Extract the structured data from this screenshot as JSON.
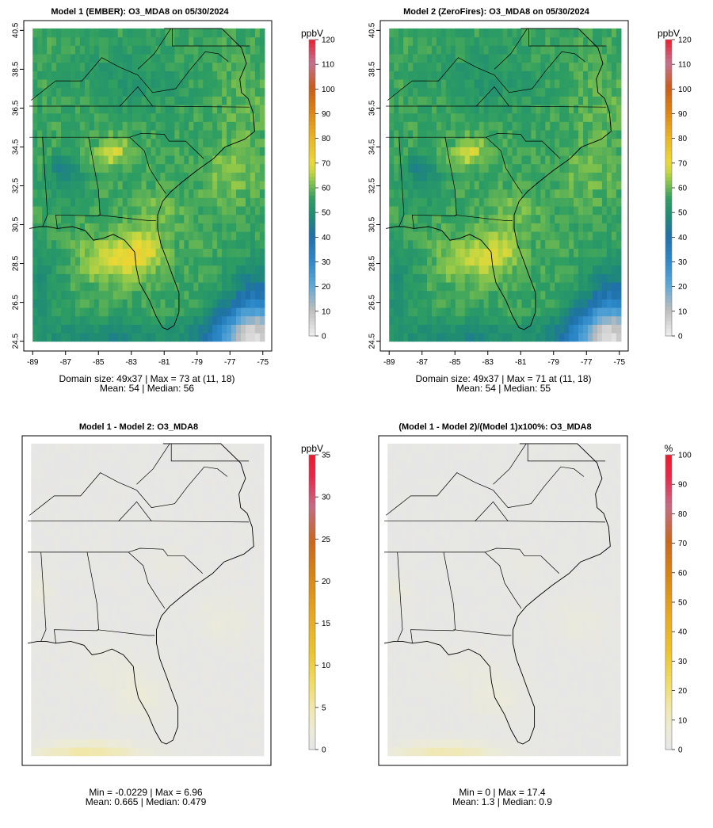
{
  "panels": [
    {
      "id": "model1",
      "title": "Model 1 (EMBER): O3_MDA8 on 05/30/2024",
      "unit": "ppbV",
      "legend_ticks": [
        "0",
        "10",
        "20",
        "30",
        "40",
        "50",
        "60",
        "70",
        "80",
        "90",
        "100",
        "110",
        "120"
      ],
      "legend_max": 120,
      "kind": "conc",
      "x_ticks": [
        "-89",
        "-87",
        "-85",
        "-83",
        "-81",
        "-79",
        "-77",
        "-75"
      ],
      "y_ticks": [
        "24.5",
        "26.5",
        "28.5",
        "30.5",
        "32.5",
        "34.5",
        "36.5",
        "38.5",
        "40.5"
      ],
      "stats_line1": "Domain size: 49x37 | Max = 73 at (11, 18)",
      "stats_line2": "Mean: 54 |  Median: 56"
    },
    {
      "id": "model2",
      "title": "Model 2 (ZeroFires): O3_MDA8 on 05/30/2024",
      "unit": "ppbV",
      "legend_ticks": [
        "0",
        "10",
        "20",
        "30",
        "40",
        "50",
        "60",
        "70",
        "80",
        "90",
        "100",
        "110",
        "120"
      ],
      "legend_max": 120,
      "kind": "conc",
      "x_ticks": [
        "-89",
        "-87",
        "-85",
        "-83",
        "-81",
        "-79",
        "-77",
        "-75"
      ],
      "y_ticks": [
        "24.5",
        "26.5",
        "28.5",
        "30.5",
        "32.5",
        "34.5",
        "36.5",
        "38.5",
        "40.5"
      ],
      "stats_line1": "Domain size: 49x37 | Max = 71 at (11, 18)",
      "stats_line2": "Mean: 54 |  Median: 55"
    },
    {
      "id": "diff",
      "title": "Model 1 - Model 2: O3_MDA8",
      "unit": "ppbV",
      "legend_ticks": [
        "0",
        "5",
        "10",
        "15",
        "20",
        "25",
        "30",
        "35"
      ],
      "legend_max": 35,
      "kind": "diff",
      "stats_line1": "Min = -0.0229 | Max = 6.96",
      "stats_line2": "Mean: 0.665 |  Median: 0.479"
    },
    {
      "id": "pct",
      "title": "(Model 1 - Model 2)/(Model 1)x100%: O3_MDA8",
      "unit": "%",
      "legend_ticks": [
        "0",
        "10",
        "20",
        "30",
        "40",
        "50",
        "60",
        "70",
        "80",
        "90",
        "100"
      ],
      "legend_max": 100,
      "kind": "pct",
      "stats_line1": "Min = 0 | Max = 17.4",
      "stats_line2": "Mean: 1.3 |  Median: 0.9"
    }
  ],
  "colors": {
    "scale_stops": [
      "#ececec",
      "#b9b9b9",
      "#5aa8d8",
      "#2c84c6",
      "#1f6ea8",
      "#1f8c6e",
      "#3aa45c",
      "#8cc64a",
      "#e2dc38",
      "#eab224",
      "#dd8412",
      "#c95c1a",
      "#c4708e",
      "#d2668e",
      "#ec1a2a"
    ],
    "diff_stops": [
      "#e6e6e6",
      "#eeeacc",
      "#f2e59c",
      "#f0d95a",
      "#eec52e",
      "#e8a820",
      "#d98614",
      "#c9681c",
      "#c56a86",
      "#e8284a",
      "#ec1a2a"
    ],
    "outline": "#000000"
  }
}
